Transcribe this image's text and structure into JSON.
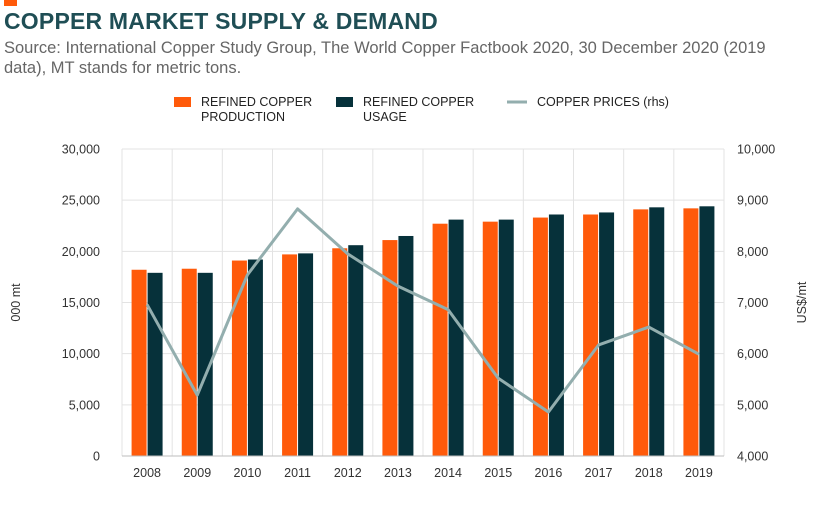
{
  "header": {
    "title": "COPPER MARKET SUPPLY & DEMAND",
    "subtitle": "Source: International Copper Study Group, The World Copper Factbook 2020, 30 December 2020 (2019 data), MT stands for metric tons."
  },
  "colors": {
    "accent": "#ff5a0a",
    "production": "#ff5a0a",
    "usage": "#06313a",
    "prices": "#93aeae",
    "grid": "#e3e3e3",
    "title": "#1f4e55"
  },
  "chart_data": {
    "type": "bar",
    "categories": [
      "2008",
      "2009",
      "2010",
      "2011",
      "2012",
      "2013",
      "2014",
      "2015",
      "2016",
      "2017",
      "2018",
      "2019"
    ],
    "series": [
      {
        "name": "REFINED COPPER PRODUCTION",
        "legend_lines": [
          "REFINED COPPER",
          "PRODUCTION"
        ],
        "kind": "bar",
        "axis": "left",
        "values": [
          18200,
          18300,
          19100,
          19700,
          20300,
          21100,
          22700,
          22900,
          23300,
          23600,
          24100,
          24200
        ]
      },
      {
        "name": "REFINED COPPER USAGE",
        "legend_lines": [
          "REFINED COPPER",
          "USAGE"
        ],
        "kind": "bar",
        "axis": "left",
        "values": [
          17900,
          17900,
          19200,
          19800,
          20600,
          21500,
          23100,
          23100,
          23600,
          23800,
          24300,
          24400
        ]
      },
      {
        "name": "COPPER PRICES (rhs)",
        "legend_lines": [
          "COPPER PRICES (rhs)"
        ],
        "kind": "line",
        "axis": "right",
        "values": [
          6960,
          5190,
          7540,
          8830,
          7950,
          7320,
          6860,
          5520,
          4860,
          6170,
          6520,
          5990
        ]
      }
    ],
    "y_left": {
      "label": "000 mt",
      "range": [
        0,
        30000
      ],
      "ticks": [
        0,
        5000,
        10000,
        15000,
        20000,
        25000,
        30000
      ],
      "tick_labels": [
        "0",
        "5,000",
        "10,000",
        "15,000",
        "20,000",
        "25,000",
        "30,000"
      ]
    },
    "y_right": {
      "label": "US$/mt",
      "range": [
        4000,
        10000
      ],
      "ticks": [
        4000,
        5000,
        6000,
        7000,
        8000,
        9000,
        10000
      ],
      "tick_labels": [
        "4,000",
        "5,000",
        "6,000",
        "7,000",
        "8,000",
        "9,000",
        "10,000"
      ]
    },
    "grid": true,
    "legend_position": "top"
  }
}
